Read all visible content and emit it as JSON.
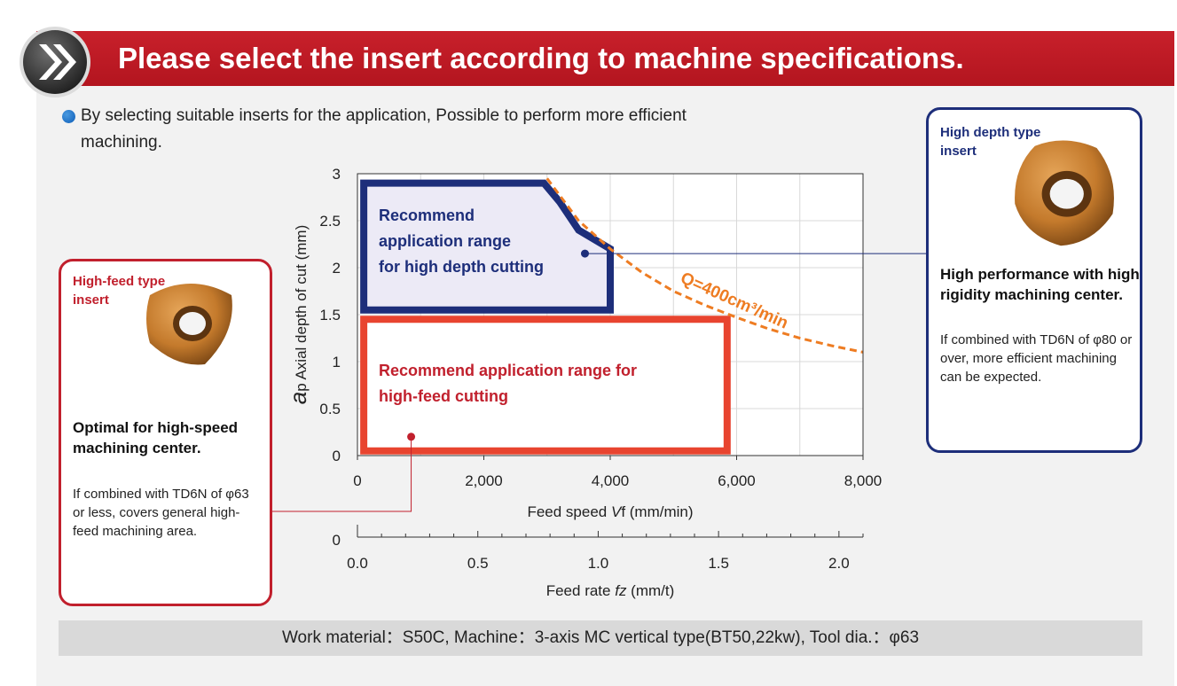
{
  "header": {
    "title": "Please select the insert according to machine specifications."
  },
  "intro": {
    "text": "By selecting suitable inserts for the application, Possible to perform more efficient machining."
  },
  "left_box": {
    "type_label": "High-feed type insert",
    "heading": "Optimal for high-speed machining center.",
    "description": "If combined with TD6N of φ63 or less, covers general high-feed machining area."
  },
  "right_box": {
    "type_label": "High depth type insert",
    "heading": "High performance with high rigidity machining center.",
    "description": "If combined with TD6N of φ80 or over, more efficient machining can be expected."
  },
  "chart_data": {
    "type": "area",
    "ylabel_prefix": "a",
    "ylabel_sub": "p",
    "ylabel": "Axial depth of cut  (mm)",
    "xlabel": "Feed speed ",
    "xlabel_var": "V",
    "xlabel_rest": "f  (mm/min)",
    "xlim": [
      0,
      8000
    ],
    "ylim": [
      0,
      3
    ],
    "x_ticks": [
      0,
      2000,
      4000,
      6000,
      8000
    ],
    "x_tick_labels": [
      "0",
      "2,000",
      "4,000",
      "6,000",
      "8,000"
    ],
    "y_ticks": [
      0,
      0.5,
      1,
      1.5,
      2,
      2.5,
      3
    ],
    "y_tick_labels": [
      "0",
      "0.5",
      "1",
      "1.5",
      "2",
      "2.5",
      "3"
    ],
    "grid": true,
    "secondary_axis": {
      "label": "Feed rate ",
      "label_var": "fz",
      "label_rest": "  (mm/t)",
      "zero_label": "0",
      "ticks": [
        0,
        0.5,
        1.0,
        1.5,
        2.0
      ],
      "tick_labels": [
        "0.0",
        "0.5",
        "1.0",
        "1.5",
        "2.0"
      ],
      "xlim": [
        0,
        2.1
      ]
    },
    "regions": [
      {
        "name": "Recommend application range for high-feed cutting",
        "label_lines": [
          "Recommend application range for",
          "high-feed cutting"
        ],
        "color": "#e8442f",
        "fill": "#ffffff",
        "points": [
          [
            100,
            0.05
          ],
          [
            5850,
            0.05
          ],
          [
            5850,
            1.45
          ],
          [
            100,
            1.45
          ]
        ]
      },
      {
        "name": "Recommend application range for high depth cutting",
        "label_lines": [
          "Recommend",
          "application range",
          "for high depth cutting"
        ],
        "color": "#1d2e7a",
        "fill": "#eceaf6",
        "points": [
          [
            100,
            1.55
          ],
          [
            4000,
            1.55
          ],
          [
            4000,
            2.2
          ],
          [
            3500,
            2.4
          ],
          [
            3200,
            2.7
          ],
          [
            2950,
            2.9
          ],
          [
            100,
            2.9
          ]
        ]
      }
    ],
    "curve": {
      "name": "Q=400cm³/min",
      "color": "#ee7c22",
      "x": [
        3000,
        3500,
        4000,
        4500,
        5000,
        5500,
        6000,
        6500,
        7000,
        7500,
        8000
      ],
      "y": [
        2.95,
        2.5,
        2.2,
        1.95,
        1.75,
        1.6,
        1.47,
        1.35,
        1.25,
        1.17,
        1.1
      ]
    },
    "markers": [
      {
        "name": "high-depth",
        "x": 3600,
        "y": 2.15,
        "color": "#1d2e7a"
      },
      {
        "name": "high-feed",
        "x": 850,
        "y": 0.2,
        "color": "#c1202d"
      }
    ]
  },
  "footer": {
    "text": "Work material：S50C, Machine：3-axis MC vertical type(BT50,22kw), Tool dia.：φ63"
  }
}
